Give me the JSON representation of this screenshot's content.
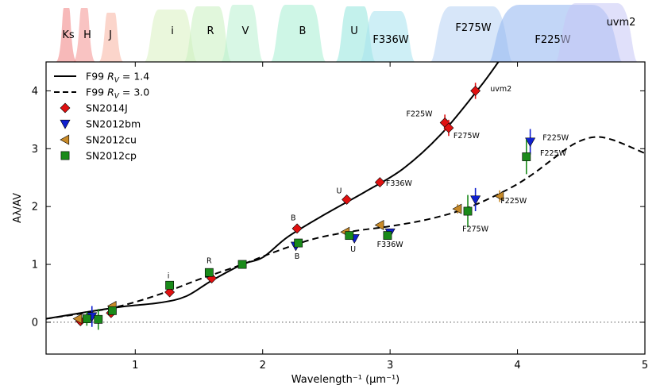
{
  "chart_data": {
    "type": "scatter",
    "xlabel": "Wavelength⁻¹ (μm⁻¹)",
    "ylabel": "Aλ/AV",
    "xlim": [
      0.3,
      5.0
    ],
    "ylim": [
      -0.55,
      4.5
    ],
    "x_ticks": [
      "1",
      "2",
      "3",
      "4",
      "5"
    ],
    "y_ticks": [
      "0",
      "1",
      "2",
      "3",
      "4"
    ],
    "filter_bands": [
      {
        "label": "Ks",
        "center": 0.46,
        "color": "#f08080"
      },
      {
        "label": "H",
        "center": 0.6,
        "color": "#f4918f"
      },
      {
        "label": "J",
        "center": 0.81,
        "color": "#f8b3a0"
      },
      {
        "label": "i",
        "center": 1.28,
        "color": "#d8f0c0"
      },
      {
        "label": "R",
        "center": 1.57,
        "color": "#c8f0c0"
      },
      {
        "label": "V",
        "center": 1.84,
        "color": "#b8f0d0"
      },
      {
        "label": "B",
        "center": 2.28,
        "color": "#a6efd2"
      },
      {
        "label": "U",
        "center": 2.73,
        "color": "#92e6dc"
      },
      {
        "label": "F336W",
        "center": 2.98,
        "color": "#a6e2ee"
      },
      {
        "label": "F275W",
        "center": 3.64,
        "color": "#b6d2f4"
      },
      {
        "label": "F225W",
        "center": 4.3,
        "color": "#8fb4f0"
      },
      {
        "label": "uvm2",
        "center": 4.62,
        "color": "#c6c6f6"
      }
    ],
    "legend": [
      {
        "label": "F99 RV=1.4",
        "prefix": "F99 ",
        "rv": "1.4",
        "style": "solid"
      },
      {
        "label": "F99 RV=3.0",
        "prefix": "F99 ",
        "rv": "3.0",
        "style": "dashed"
      },
      {
        "label": "SN2014J",
        "marker": "diamond",
        "color": "#e01010"
      },
      {
        "label": "SN2012bm",
        "marker": "triangle-down",
        "color": "#1020d0"
      },
      {
        "label": "SN2012cu",
        "marker": "triangle-left",
        "color": "#c88a28"
      },
      {
        "label": "SN2012cp",
        "marker": "square",
        "color": "#1a8a1a"
      }
    ],
    "series": [
      {
        "name": "F99 RV=1.4",
        "type": "line",
        "style": "solid",
        "x": [
          0.3,
          0.6,
          0.9,
          1.2,
          1.4,
          1.6,
          1.84,
          2.0,
          2.2,
          2.5,
          2.8,
          3.1,
          3.4,
          3.7,
          3.85
        ],
        "y": [
          0.06,
          0.17,
          0.27,
          0.34,
          0.45,
          0.72,
          1.0,
          1.12,
          1.48,
          1.88,
          2.25,
          2.65,
          3.25,
          4.05,
          4.5
        ]
      },
      {
        "name": "F99 RV=3.0",
        "type": "line",
        "style": "dashed",
        "x": [
          0.3,
          0.6,
          0.9,
          1.2,
          1.5,
          1.84,
          2.1,
          2.4,
          2.7,
          3.0,
          3.3,
          3.6,
          3.9,
          4.1,
          4.3,
          4.45,
          4.6,
          4.75,
          5.0
        ],
        "y": [
          0.06,
          0.16,
          0.29,
          0.49,
          0.74,
          1.0,
          1.22,
          1.44,
          1.57,
          1.66,
          1.78,
          1.97,
          2.27,
          2.53,
          2.86,
          3.09,
          3.2,
          3.15,
          2.92
        ]
      },
      {
        "name": "SN2014J",
        "marker": "diamond",
        "color": "#e01010",
        "points": [
          {
            "x": 0.57,
            "y": 0.02,
            "err": 0.05
          },
          {
            "x": 0.81,
            "y": 0.16,
            "err": 0.05
          },
          {
            "x": 1.27,
            "y": 0.52,
            "err": 0.05
          },
          {
            "x": 1.6,
            "y": 0.76,
            "err": 0.05
          },
          {
            "x": 2.27,
            "y": 1.62,
            "err": 0.05
          },
          {
            "x": 2.66,
            "y": 2.12,
            "err": 0.05
          },
          {
            "x": 2.92,
            "y": 2.42,
            "err": 0.05
          },
          {
            "x": 3.43,
            "y": 3.45,
            "err": 0.14
          },
          {
            "x": 3.46,
            "y": 3.36,
            "err": 0.14
          },
          {
            "x": 3.67,
            "y": 4.0,
            "err": 0.14
          }
        ]
      },
      {
        "name": "SN2012bm",
        "marker": "triangle-down",
        "color": "#1020d0",
        "points": [
          {
            "x": 0.66,
            "y": 0.1,
            "err": 0.18
          },
          {
            "x": 2.26,
            "y": 1.32,
            "err": 0.05
          },
          {
            "x": 2.72,
            "y": 1.45,
            "err": 0.06
          },
          {
            "x": 3.0,
            "y": 1.55,
            "err": 0.06
          },
          {
            "x": 3.67,
            "y": 2.12,
            "err": 0.2
          },
          {
            "x": 4.1,
            "y": 3.12,
            "err": 0.22
          }
        ]
      },
      {
        "name": "SN2012cu",
        "marker": "triangle-left",
        "color": "#c88a28",
        "points": [
          {
            "x": 0.55,
            "y": 0.06,
            "err": 0.03
          },
          {
            "x": 0.82,
            "y": 0.28,
            "err": 0.04
          },
          {
            "x": 2.65,
            "y": 1.56,
            "err": 0.04
          },
          {
            "x": 2.92,
            "y": 1.68,
            "err": 0.04
          },
          {
            "x": 3.53,
            "y": 1.96,
            "err": 0.08
          },
          {
            "x": 3.86,
            "y": 2.18,
            "err": 0.1
          }
        ]
      },
      {
        "name": "SN2012cp",
        "marker": "square",
        "color": "#1a8a1a",
        "points": [
          {
            "x": 0.62,
            "y": 0.06,
            "err": 0.12
          },
          {
            "x": 0.71,
            "y": 0.05,
            "err": 0.18
          },
          {
            "x": 0.82,
            "y": 0.2,
            "err": 0.06
          },
          {
            "x": 1.27,
            "y": 0.64,
            "err": 0.07
          },
          {
            "x": 1.58,
            "y": 0.86,
            "err": 0.05
          },
          {
            "x": 1.84,
            "y": 1.0,
            "err": 0.03
          },
          {
            "x": 2.28,
            "y": 1.37,
            "err": 0.05
          },
          {
            "x": 2.68,
            "y": 1.5,
            "err": 0.06
          },
          {
            "x": 2.98,
            "y": 1.5,
            "err": 0.05
          },
          {
            "x": 3.61,
            "y": 1.92,
            "err": 0.28
          },
          {
            "x": 4.07,
            "y": 2.86,
            "err": 0.3
          }
        ]
      }
    ],
    "annotations": [
      {
        "text": "i",
        "x": 1.26,
        "y": 0.76
      },
      {
        "text": "R",
        "x": 1.58,
        "y": 1.02
      },
      {
        "text": "B",
        "x": 2.24,
        "y": 1.76
      },
      {
        "text": "B",
        "x": 2.27,
        "y": 1.1
      },
      {
        "text": "U",
        "x": 2.6,
        "y": 2.23
      },
      {
        "text": "U",
        "x": 2.71,
        "y": 1.22
      },
      {
        "text": "F336W",
        "x": 3.07,
        "y": 2.36
      },
      {
        "text": "F336W",
        "x": 3.0,
        "y": 1.3
      },
      {
        "text": "F225W",
        "x": 3.23,
        "y": 3.56
      },
      {
        "text": "F275W",
        "x": 3.6,
        "y": 3.18
      },
      {
        "text": "uvm2",
        "x": 3.87,
        "y": 3.99
      },
      {
        "text": "F275W",
        "x": 3.67,
        "y": 1.57
      },
      {
        "text": "F225W",
        "x": 3.97,
        "y": 2.06
      },
      {
        "text": "F225W",
        "x": 4.3,
        "y": 3.15
      },
      {
        "text": "F225W",
        "x": 4.28,
        "y": 2.88
      }
    ]
  }
}
